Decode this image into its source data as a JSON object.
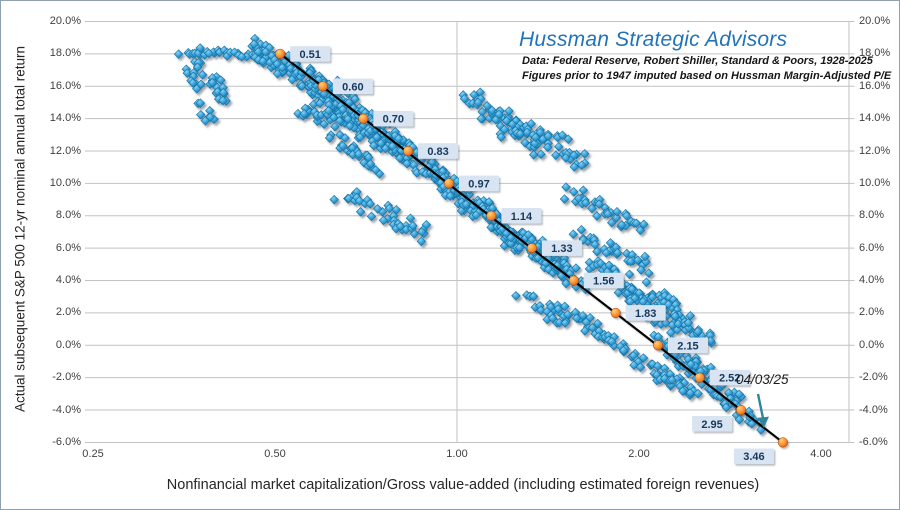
{
  "style_colors": {
    "title_blue": "#2273B8",
    "marker_blue": "#2E9CD9",
    "trend_line": "#000000",
    "trend_dot_orange": "#F0851F",
    "label_box_fill": "#D8E4F1",
    "label_text": "#17375D",
    "grid_gray": "#C2C2C2",
    "axis_text": "#3F3F3F",
    "arrow_teal": "#31849B"
  },
  "chart_data": {
    "type": "scatter",
    "title": "Hussman Strategic Advisors",
    "subtitle": [
      "Data: Federal Reserve, Robert Shiller, Standard & Poors, 1928-2025",
      "Figures prior to 1947 imputed based on Hussman Margin-Adjusted P/E"
    ],
    "xlabel": "Nonfinancial market capitalization/Gross value-added (including estimated foreign revenues)",
    "ylabel": "Actual subsequent S&P 500 12-yr nominal annual total return",
    "x_scale": "log2",
    "x_range": [
      0.25,
      4.45
    ],
    "x_ticks": [
      {
        "v": 0.25,
        "label": "0.25"
      },
      {
        "v": 0.5,
        "label": "0.50"
      },
      {
        "v": 1.0,
        "label": "1.00"
      },
      {
        "v": 2.0,
        "label": "2.00"
      },
      {
        "v": 4.0,
        "label": "4.00"
      }
    ],
    "y_range_pct": [
      -6,
      20
    ],
    "y_tick_step_pct": 2,
    "y_tick_labels": [
      "20.0%",
      "18.0%",
      "16.0%",
      "14.0%",
      "12.0%",
      "10.0%",
      "8.0%",
      "6.0%",
      "4.0%",
      "2.0%",
      "0.0%",
      "-2.0%",
      "-4.0%",
      "-6.0%"
    ],
    "grid": {
      "horizontal": true,
      "vertical_gridline_at": 1.0,
      "legend": "none"
    },
    "trend_line": {
      "color": "#000000",
      "points": [
        {
          "x": 0.51,
          "y_pct": 18,
          "label": "0.51",
          "label_pos": "right"
        },
        {
          "x": 0.6,
          "y_pct": 16,
          "label": "0.60",
          "label_pos": "right"
        },
        {
          "x": 0.7,
          "y_pct": 14,
          "label": "0.70",
          "label_pos": "right"
        },
        {
          "x": 0.83,
          "y_pct": 12,
          "label": "0.83",
          "label_pos": "right"
        },
        {
          "x": 0.97,
          "y_pct": 10,
          "label": "0.97",
          "label_pos": "right"
        },
        {
          "x": 1.14,
          "y_pct": 8,
          "label": "1.14",
          "label_pos": "right"
        },
        {
          "x": 1.33,
          "y_pct": 6,
          "label": "1.33",
          "label_pos": "right"
        },
        {
          "x": 1.56,
          "y_pct": 4,
          "label": "1.56",
          "label_pos": "right"
        },
        {
          "x": 1.83,
          "y_pct": 2,
          "label": "1.83",
          "label_pos": "right"
        },
        {
          "x": 2.15,
          "y_pct": 0,
          "label": "2.15",
          "label_pos": "right"
        },
        {
          "x": 2.52,
          "y_pct": -2,
          "label": "2.52",
          "label_pos": "right"
        },
        {
          "x": 2.95,
          "y_pct": -4,
          "label": "2.95",
          "label_pos": "below-left"
        },
        {
          "x": 3.46,
          "y_pct": -6,
          "label": "3.46",
          "label_pos": "below-left"
        }
      ]
    },
    "annotation": {
      "label": "04/03/25",
      "arrow_color": "#31849B",
      "points_to": {
        "x": 3.2,
        "y_pct": -4.9
      }
    },
    "scatter": {
      "marker": "diamond",
      "color": "#2E9CD9",
      "estimated_count": 1318,
      "note": "Monthly observations 1928-2025; cloud estimated from pixels as jittered runs [x1, y1_pct, x2, y2_pct, n_points, y_spread_pct]",
      "seed": 20250403,
      "runs": [
        [
          0.355,
          18.2,
          0.52,
          17.8,
          44,
          0.32
        ],
        [
          0.365,
          17.6,
          0.375,
          15.9,
          14,
          0.28
        ],
        [
          0.39,
          16.7,
          0.415,
          14.8,
          16,
          0.3
        ],
        [
          0.37,
          15.0,
          0.4,
          13.7,
          8,
          0.3
        ],
        [
          0.46,
          18.3,
          0.64,
          15.8,
          72,
          0.72
        ],
        [
          0.5,
          17.6,
          0.72,
          13.6,
          85,
          0.85
        ],
        [
          0.57,
          16.2,
          0.84,
          11.8,
          85,
          0.85
        ],
        [
          0.68,
          14.6,
          1.0,
          9.6,
          85,
          0.85
        ],
        [
          0.55,
          14.8,
          0.78,
          12.3,
          55,
          0.85
        ],
        [
          0.8,
          12.3,
          1.06,
          8.8,
          62,
          0.85
        ],
        [
          0.62,
          13.0,
          0.74,
          10.9,
          26,
          0.7
        ],
        [
          0.64,
          9.4,
          0.9,
          6.9,
          40,
          0.75
        ],
        [
          1.04,
          15.3,
          1.38,
          12.2,
          58,
          0.95
        ],
        [
          1.22,
          13.9,
          1.63,
          11.4,
          46,
          0.85
        ],
        [
          0.94,
          10.2,
          1.28,
          6.4,
          88,
          0.85
        ],
        [
          1.08,
          8.6,
          1.48,
          4.6,
          76,
          0.85
        ],
        [
          1.28,
          6.6,
          1.6,
          3.9,
          56,
          0.75
        ],
        [
          1.28,
          3.2,
          1.52,
          1.2,
          16,
          0.6
        ],
        [
          1.42,
          2.6,
          1.8,
          0.3,
          30,
          0.65
        ],
        [
          1.76,
          0.6,
          2.24,
          -2.4,
          32,
          0.6
        ],
        [
          1.5,
          9.4,
          2.02,
          7.3,
          36,
          0.7
        ],
        [
          1.58,
          6.8,
          2.1,
          4.8,
          32,
          0.7
        ],
        [
          1.66,
          5.2,
          2.3,
          2.2,
          48,
          0.8
        ],
        [
          1.86,
          3.4,
          2.42,
          1.4,
          48,
          0.7
        ],
        [
          2.05,
          1.9,
          2.62,
          0.6,
          34,
          0.6
        ],
        [
          2.12,
          0.4,
          2.6,
          -2.1,
          38,
          0.6
        ],
        [
          2.38,
          -0.9,
          2.92,
          -3.6,
          40,
          0.6
        ],
        [
          2.66,
          -3.0,
          3.18,
          -4.9,
          26,
          0.45
        ],
        [
          2.2,
          -1.6,
          2.48,
          -3.1,
          22,
          0.5
        ]
      ]
    }
  }
}
